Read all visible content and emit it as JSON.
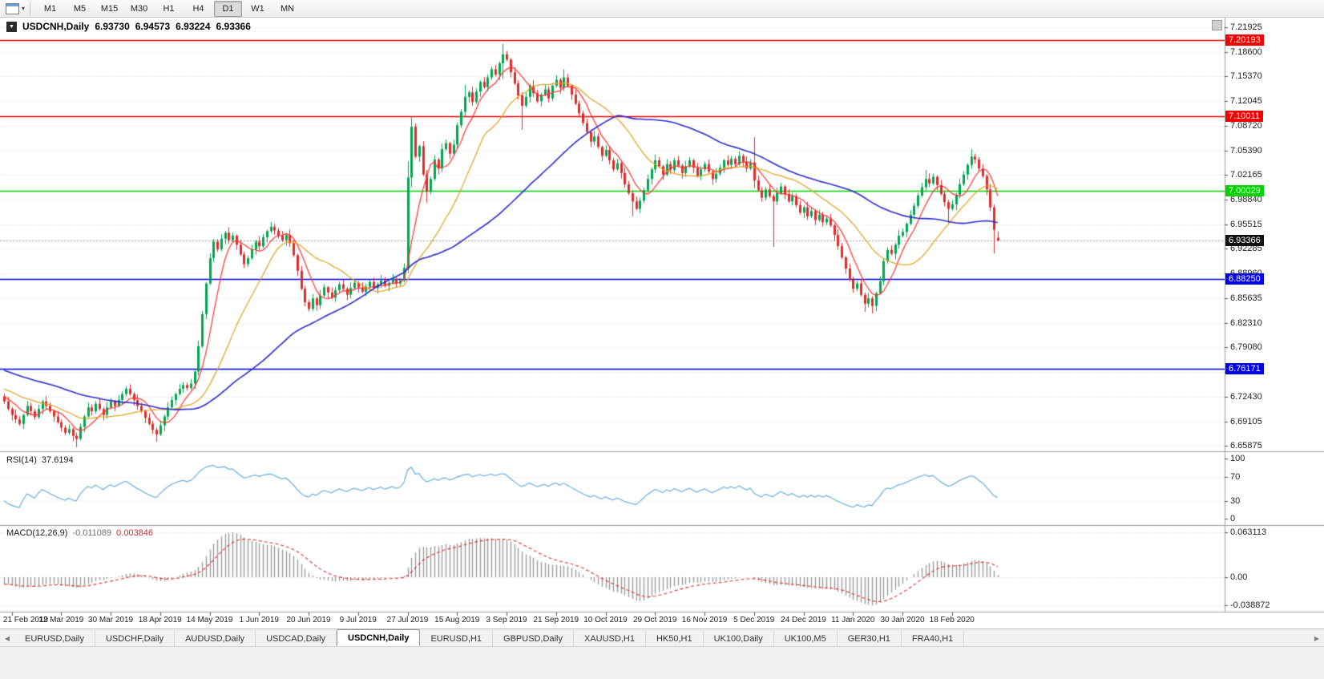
{
  "toolbar": {
    "timeframes": [
      "M1",
      "M5",
      "M15",
      "M30",
      "H1",
      "H4",
      "D1",
      "W1",
      "MN"
    ],
    "active": "D1",
    "dropdown_glyph": "▾"
  },
  "chart": {
    "collapse_glyph": "▼",
    "title": "USDCNH,Daily",
    "ohlc": {
      "open": "6.93730",
      "high": "6.94573",
      "low": "6.93224",
      "close": "6.93366"
    }
  },
  "rsi": {
    "label": "RSI(14)",
    "value": "37.6194",
    "period": 14,
    "levels": [
      100,
      70,
      30,
      0
    ],
    "color": "#5fa8dc"
  },
  "macd": {
    "label": "MACD(12,26,9)",
    "main_value": "-0.011089",
    "signal_value": "0.003846",
    "fast": 12,
    "slow": 26,
    "signal": 9,
    "axis_labels": {
      "top": "0.063113",
      "zero": "0.00",
      "bottom": "-0.038872"
    },
    "hist_color": "#9b9b9b",
    "signal_color": "#e03030"
  },
  "tabs": {
    "left_arrow": "◀",
    "right_arrow": "▶",
    "active_index": 4,
    "items": [
      "EURUSD,Daily",
      "USDCHF,Daily",
      "AUDUSD,Daily",
      "USDCAD,Daily",
      "USDCNH,Daily",
      "EURUSD,H1",
      "GBPUSD,Daily",
      "XAUUSD,H1",
      "HK50,H1",
      "UK100,Daily",
      "UK100,M5",
      "GER30,H1",
      "FRA40,H1"
    ]
  },
  "chart_data": {
    "type": "candlestick",
    "symbol": "USDCNH",
    "timeframe": "Daily",
    "price_axis": {
      "max": 7.21925,
      "min": 6.65875,
      "ticks": [
        "7.21925",
        "7.18600",
        "7.15370",
        "7.12045",
        "7.08720",
        "7.05390",
        "7.02165",
        "6.98840",
        "6.95515",
        "6.92285",
        "6.88960",
        "6.85635",
        "6.82310",
        "6.79080",
        "6.75755",
        "6.72430",
        "6.69105",
        "6.65875"
      ]
    },
    "hlines": [
      {
        "price": 7.20193,
        "label": "7.20193",
        "color": "#f40000"
      },
      {
        "price": 7.10011,
        "label": "7.10011",
        "color": "#f40000"
      },
      {
        "price": 7.00029,
        "label": "7.00029",
        "color": "#00d300"
      },
      {
        "price": 6.8825,
        "label": "6.88250",
        "color": "#0000f0"
      },
      {
        "price": 6.76171,
        "label": "6.76171",
        "color": "#0000f0"
      }
    ],
    "current_price": {
      "value": 6.93366,
      "label": "6.93366",
      "color": "#111111"
    },
    "date_axis": [
      {
        "text": "21 Feb 2019",
        "i": 2
      },
      {
        "text": "12 Mar 2019",
        "i": 15
      },
      {
        "text": "30 Mar 2019",
        "i": 28
      },
      {
        "text": "18 Apr 2019",
        "i": 41
      },
      {
        "text": "14 May 2019",
        "i": 54
      },
      {
        "text": "1 Jun 2019",
        "i": 67
      },
      {
        "text": "20 Jun 2019",
        "i": 80
      },
      {
        "text": "9 Jul 2019",
        "i": 93
      },
      {
        "text": "27 Jul 2019",
        "i": 106
      },
      {
        "text": "15 Aug 2019",
        "i": 119
      },
      {
        "text": "3 Sep 2019",
        "i": 132
      },
      {
        "text": "21 Sep 2019",
        "i": 145
      },
      {
        "text": "10 Oct 2019",
        "i": 158
      },
      {
        "text": "29 Oct 2019",
        "i": 171
      },
      {
        "text": "16 Nov 2019",
        "i": 184
      },
      {
        "text": "5 Dec 2019",
        "i": 197
      },
      {
        "text": "24 Dec 2019",
        "i": 210
      },
      {
        "text": "11 Jan 2020",
        "i": 223
      },
      {
        "text": "30 Jan 2020",
        "i": 236
      },
      {
        "text": "18 Feb 2020",
        "i": 249
      }
    ],
    "colors": {
      "bull": "#00a651",
      "bear": "#e02b2b",
      "grid": "#dedede",
      "current_line": "#9a9a9a",
      "separator": "#9e9e9e"
    },
    "moving_averages": [
      {
        "name": "ma-fast",
        "period": 7,
        "color": "#ff3232"
      },
      {
        "name": "ma-medium",
        "period": 21,
        "color": "#dfa31d"
      },
      {
        "name": "ma-slow",
        "period": 56,
        "color": "#2b2bd0"
      }
    ],
    "ma_warmup": {
      "count": 56,
      "start": 6.8,
      "end": 6.722
    },
    "first_open": 6.725,
    "closes": [
      6.718,
      6.708,
      6.7,
      6.694,
      6.688,
      6.7,
      6.712,
      6.705,
      6.697,
      6.708,
      6.718,
      6.712,
      6.705,
      6.698,
      6.69,
      6.683,
      6.676,
      6.681,
      6.672,
      6.668,
      6.684,
      6.698,
      6.71,
      6.705,
      6.715,
      6.708,
      6.7,
      6.71,
      6.718,
      6.712,
      6.72,
      6.728,
      6.735,
      6.728,
      6.72,
      6.712,
      6.705,
      6.696,
      6.688,
      6.68,
      6.674,
      6.686,
      6.698,
      6.71,
      6.72,
      6.728,
      6.735,
      6.74,
      6.736,
      6.742,
      6.758,
      6.792,
      6.835,
      6.876,
      6.91,
      6.932,
      6.922,
      6.936,
      6.944,
      6.934,
      6.94,
      6.928,
      6.915,
      6.902,
      6.91,
      6.922,
      6.932,
      6.926,
      6.938,
      6.946,
      6.952,
      6.947,
      6.94,
      6.934,
      6.941,
      6.93,
      6.914,
      6.893,
      6.869,
      6.851,
      6.842,
      6.856,
      6.847,
      6.86,
      6.871,
      6.864,
      6.857,
      6.867,
      6.875,
      6.869,
      6.861,
      6.87,
      6.877,
      6.871,
      6.865,
      6.872,
      6.878,
      6.87,
      6.875,
      6.88,
      6.873,
      6.877,
      6.882,
      6.876,
      6.88,
      6.897,
      7.018,
      7.086,
      7.046,
      7.06,
      7.022,
      6.999,
      7.016,
      7.042,
      7.03,
      7.056,
      7.064,
      7.05,
      7.062,
      7.088,
      7.106,
      7.126,
      7.132,
      7.119,
      7.133,
      7.146,
      7.139,
      7.152,
      7.163,
      7.156,
      7.171,
      7.183,
      7.176,
      7.159,
      7.144,
      7.128,
      7.114,
      7.126,
      7.141,
      7.131,
      7.12,
      7.129,
      7.136,
      7.124,
      7.141,
      7.149,
      7.138,
      7.152,
      7.141,
      7.129,
      7.117,
      7.104,
      7.091,
      7.079,
      7.066,
      7.073,
      7.059,
      7.047,
      7.055,
      7.041,
      7.029,
      7.037,
      7.024,
      7.009,
      6.997,
      6.986,
      6.976,
      6.987,
      7.001,
      7.016,
      7.029,
      7.041,
      7.033,
      7.022,
      7.036,
      7.028,
      7.041,
      7.034,
      7.024,
      7.033,
      7.041,
      7.031,
      7.02,
      7.029,
      7.036,
      7.026,
      7.016,
      7.023,
      7.031,
      7.041,
      7.035,
      7.043,
      7.036,
      7.047,
      7.039,
      7.03,
      7.038,
      7.014,
      7.001,
      6.991,
      7.002,
      6.993,
      6.986,
      6.997,
      7.006,
      6.996,
      6.986,
      6.993,
      6.981,
      6.971,
      6.978,
      6.966,
      6.973,
      6.961,
      6.968,
      6.958,
      6.963,
      6.954,
      6.941,
      6.926,
      6.911,
      6.896,
      6.881,
      6.869,
      6.876,
      6.861,
      6.849,
      6.856,
      6.846,
      6.863,
      6.879,
      6.906,
      6.921,
      6.916,
      6.928,
      6.94,
      6.945,
      6.956,
      6.968,
      6.98,
      6.994,
      7.005,
      7.016,
      7.01,
      7.019,
      7.008,
      6.996,
      6.985,
      6.976,
      6.982,
      6.995,
      7.009,
      7.022,
      7.035,
      7.046,
      7.042,
      7.03,
      7.02,
      7.002,
      6.978,
      6.948,
      6.93366
    ],
    "ohlc_overrides": {
      "19": [
        6.672,
        6.676,
        6.657,
        6.668
      ],
      "40": [
        6.68,
        6.683,
        6.664,
        6.674
      ],
      "106": [
        6.897,
        7.04,
        6.89,
        7.018
      ],
      "107": [
        7.018,
        7.098,
        7.005,
        7.086
      ],
      "111": [
        7.022,
        7.028,
        6.984,
        6.999
      ],
      "121": [
        7.106,
        7.142,
        7.1,
        7.126
      ],
      "131": [
        7.171,
        7.197,
        7.15,
        7.183
      ],
      "136": [
        7.128,
        7.132,
        7.082,
        7.114
      ],
      "147": [
        7.138,
        7.163,
        7.134,
        7.152
      ],
      "165": [
        6.997,
        7.001,
        6.966,
        6.986
      ],
      "197": [
        7.038,
        7.072,
        7.004,
        7.014
      ],
      "202": [
        6.993,
        6.996,
        6.925,
        6.986
      ],
      "226": [
        6.861,
        6.864,
        6.838,
        6.849
      ],
      "228": [
        6.856,
        6.859,
        6.836,
        6.846
      ],
      "242": [
        7.005,
        7.028,
        7.001,
        7.016
      ],
      "248": [
        6.985,
        6.988,
        6.957,
        6.976
      ],
      "254": [
        7.035,
        7.056,
        7.03,
        7.046
      ],
      "260": [
        6.978,
        6.982,
        6.916,
        6.948
      ],
      "261": [
        6.9373,
        6.94573,
        6.93224,
        6.93366
      ]
    }
  }
}
